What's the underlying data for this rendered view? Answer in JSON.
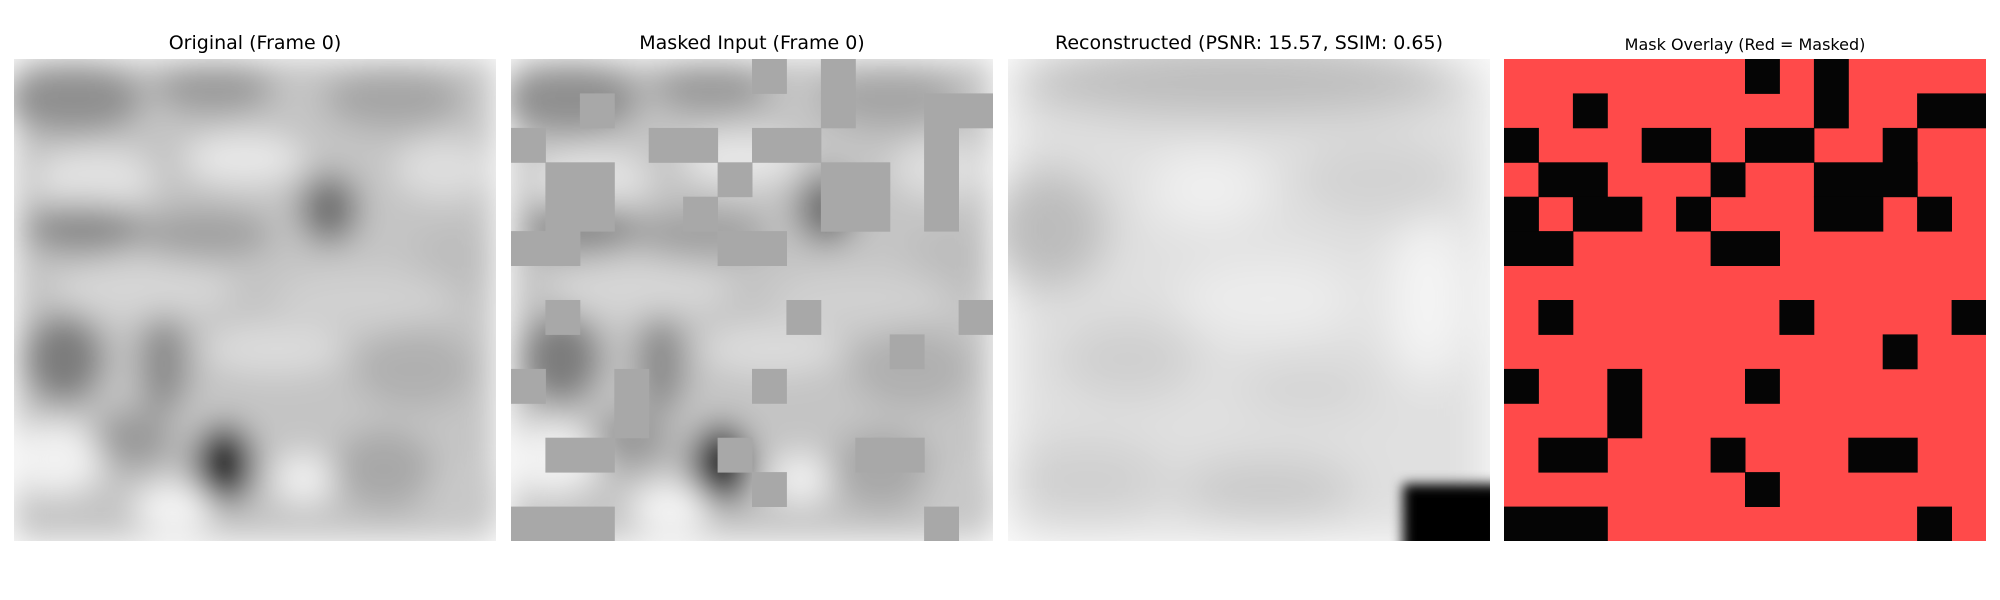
{
  "figure": {
    "panels": [
      {
        "id": "original",
        "title": "Original (Frame 0)"
      },
      {
        "id": "masked",
        "title": "Masked Input (Frame 0)"
      },
      {
        "id": "reconstructed",
        "title": "Reconstructed (PSNR: 15.57, SSIM: 0.65)"
      },
      {
        "id": "overlay",
        "title": "Mask Overlay (Red = Masked)"
      }
    ],
    "metrics": {
      "psnr": 15.57,
      "ssim": 0.65
    },
    "colors": {
      "mask_red": "#ff4a4a",
      "unmasked_black": "#050505",
      "masked_fill_gray": "#a8a8a8"
    }
  }
}
